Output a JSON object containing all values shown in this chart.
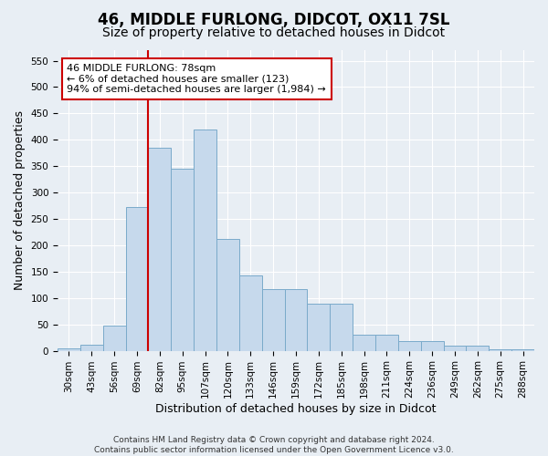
{
  "title1": "46, MIDDLE FURLONG, DIDCOT, OX11 7SL",
  "title2": "Size of property relative to detached houses in Didcot",
  "xlabel": "Distribution of detached houses by size in Didcot",
  "ylabel": "Number of detached properties",
  "footnote": "Contains HM Land Registry data © Crown copyright and database right 2024.\nContains public sector information licensed under the Open Government Licence v3.0.",
  "bar_labels": [
    "30sqm",
    "43sqm",
    "56sqm",
    "69sqm",
    "82sqm",
    "95sqm",
    "107sqm",
    "120sqm",
    "133sqm",
    "146sqm",
    "159sqm",
    "172sqm",
    "185sqm",
    "198sqm",
    "211sqm",
    "224sqm",
    "236sqm",
    "249sqm",
    "262sqm",
    "275sqm",
    "288sqm"
  ],
  "bar_values": [
    5,
    12,
    48,
    272,
    385,
    345,
    420,
    212,
    143,
    117,
    117,
    90,
    90,
    30,
    30,
    18,
    18,
    10,
    10,
    3,
    3
  ],
  "bar_color": "#c6d9ec",
  "bar_edge_color": "#7aaaca",
  "vline_color": "#cc0000",
  "annotation_text": "46 MIDDLE FURLONG: 78sqm\n← 6% of detached houses are smaller (123)\n94% of semi-detached houses are larger (1,984) →",
  "annotation_box_color": "#ffffff",
  "annotation_box_edge": "#cc0000",
  "ylim": [
    0,
    570
  ],
  "yticks": [
    0,
    50,
    100,
    150,
    200,
    250,
    300,
    350,
    400,
    450,
    500,
    550
  ],
  "bg_color": "#e8eef4",
  "grid_color": "#ffffff",
  "title1_fontsize": 12,
  "title2_fontsize": 10,
  "xlabel_fontsize": 9,
  "ylabel_fontsize": 9,
  "tick_fontsize": 7.5,
  "footnote_fontsize": 6.5
}
